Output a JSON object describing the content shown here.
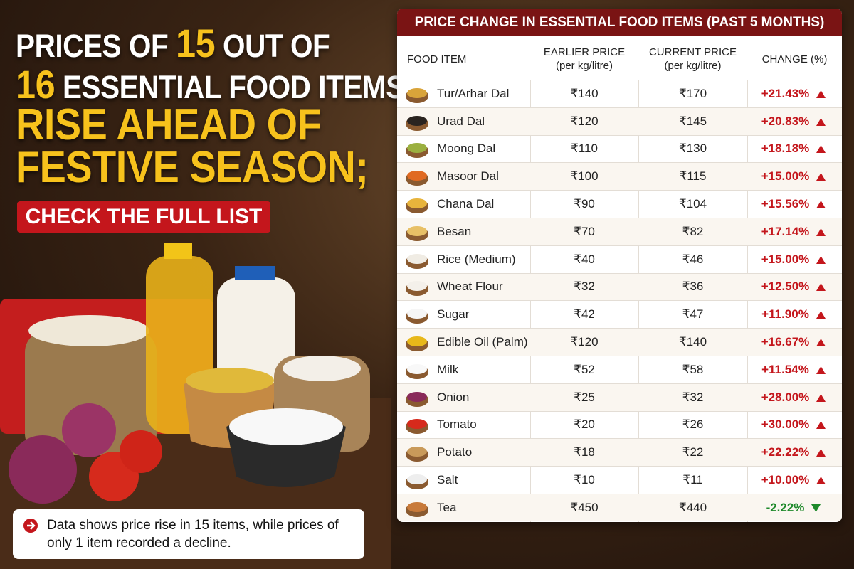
{
  "headline": {
    "line1": {
      "pre": "PRICES OF ",
      "num": "15",
      "post": " OUT OF"
    },
    "line2": {
      "num": "16",
      "post": " ESSENTIAL FOOD ITEMS"
    },
    "line3": "RISE AHEAD OF",
    "line4": "FESTIVE SEASON;"
  },
  "cta": "CHECK THE FULL LIST",
  "note": "Data shows price rise in 15 items, while prices of only 1 item recorded a decline.",
  "table": {
    "title": "PRICE CHANGE IN ESSENTIAL FOOD ITEMS (PAST 5 MONTHS)",
    "columns": [
      {
        "label": "FOOD ITEM"
      },
      {
        "label": "EARLIER PRICE",
        "unit": "(per kg/litre)"
      },
      {
        "label": "CURRENT PRICE",
        "unit": "(per kg/litre)"
      },
      {
        "label": "CHANGE (%)"
      }
    ],
    "rows": [
      [
        "Tur/Arhar Dal",
        "₹140",
        "₹170",
        "+21.43%"
      ],
      [
        "Urad Dal",
        "₹120",
        "₹145",
        "+20.83%"
      ],
      [
        "Moong Dal",
        "₹110",
        "₹130",
        "+18.18%"
      ],
      [
        "Masoor Dal",
        "₹100",
        "₹115",
        "+15.00%"
      ],
      [
        "Chana Dal",
        "₹90",
        "₹104",
        "+15.56%"
      ],
      [
        "Besan",
        "₹70",
        "₹82",
        "+17.14%"
      ],
      [
        "Rice (Medium)",
        "₹40",
        "₹46",
        "+15.00%"
      ],
      [
        "Wheat Flour",
        "₹32",
        "₹36",
        "+12.50%"
      ],
      [
        "Sugar",
        "₹42",
        "₹47",
        "+11.90%"
      ],
      [
        "Edible Oil (Palm)",
        "₹120",
        "₹140",
        "+16.67%"
      ],
      [
        "Milk",
        "₹52",
        "₹58",
        "+11.54%"
      ],
      [
        "Onion",
        "₹25",
        "₹32",
        "+28.00%"
      ],
      [
        "Tomato",
        "₹20",
        "₹26",
        "+30.00%"
      ],
      [
        "Potato",
        "₹18",
        "₹22",
        "+22.22%"
      ],
      [
        "Salt",
        "₹10",
        "₹11",
        "+10.00%"
      ],
      [
        "Tea",
        "₹450",
        "₹440",
        "-2.22%"
      ]
    ]
  }
}
